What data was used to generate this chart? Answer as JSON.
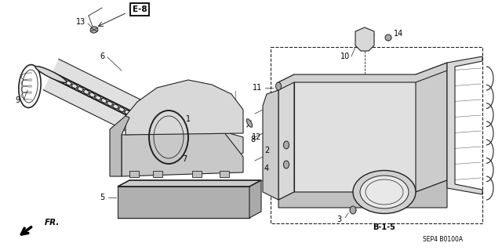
{
  "bg_color": "#ffffff",
  "fig_width": 6.4,
  "fig_height": 3.19,
  "dpi": 100,
  "label_E8": "E-8",
  "label_B15": "B-1-5",
  "label_SEP4": "SEP4 B0100A",
  "label_FR": "FR.",
  "lc": "#222222",
  "tc": "#000000",
  "gray_light": "#cccccc",
  "gray_mid": "#aaaaaa",
  "gray_dark": "#888888",
  "white": "#ffffff"
}
